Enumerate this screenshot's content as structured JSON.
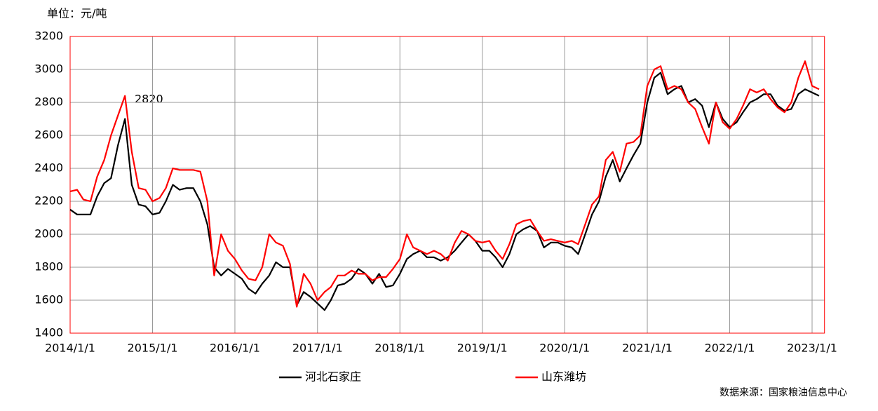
{
  "chart_data": {
    "type": "line",
    "y_label": "单位：元/吨",
    "annotation": "2820",
    "source": "数据来源：国家粮油信息中心",
    "x": [
      "2014/1/1",
      "2014/2/1",
      "2014/3/1",
      "2014/4/1",
      "2014/5/1",
      "2014/6/1",
      "2014/7/1",
      "2014/8/1",
      "2014/9/1",
      "2014/10/1",
      "2014/11/1",
      "2014/12/1",
      "2015/1/1",
      "2015/2/1",
      "2015/3/1",
      "2015/4/1",
      "2015/5/1",
      "2015/6/1",
      "2015/7/1",
      "2015/8/1",
      "2015/9/1",
      "2015/10/1",
      "2015/11/1",
      "2015/12/1",
      "2016/1/1",
      "2016/2/1",
      "2016/3/1",
      "2016/4/1",
      "2016/5/1",
      "2016/6/1",
      "2016/7/1",
      "2016/8/1",
      "2016/9/1",
      "2016/10/1",
      "2016/11/1",
      "2016/12/1",
      "2017/1/1",
      "2017/2/1",
      "2017/3/1",
      "2017/4/1",
      "2017/5/1",
      "2017/6/1",
      "2017/7/1",
      "2017/8/1",
      "2017/9/1",
      "2017/10/1",
      "2017/11/1",
      "2017/12/1",
      "2018/1/1",
      "2018/2/1",
      "2018/3/1",
      "2018/4/1",
      "2018/5/1",
      "2018/6/1",
      "2018/7/1",
      "2018/8/1",
      "2018/9/1",
      "2018/10/1",
      "2018/11/1",
      "2018/12/1",
      "2019/1/1",
      "2019/2/1",
      "2019/3/1",
      "2019/4/1",
      "2019/5/1",
      "2019/6/1",
      "2019/7/1",
      "2019/8/1",
      "2019/9/1",
      "2019/10/1",
      "2019/11/1",
      "2019/12/1",
      "2020/1/1",
      "2020/2/1",
      "2020/3/1",
      "2020/4/1",
      "2020/5/1",
      "2020/6/1",
      "2020/7/1",
      "2020/8/1",
      "2020/9/1",
      "2020/10/1",
      "2020/11/1",
      "2020/12/1",
      "2021/1/1",
      "2021/2/1",
      "2021/3/1",
      "2021/4/1",
      "2021/5/1",
      "2021/6/1",
      "2021/7/1",
      "2021/8/1",
      "2021/9/1",
      "2021/10/1",
      "2021/11/1",
      "2021/12/1",
      "2022/1/1",
      "2022/2/1",
      "2022/3/1",
      "2022/4/1",
      "2022/5/1",
      "2022/6/1",
      "2022/7/1",
      "2022/8/1",
      "2022/9/1",
      "2022/10/1",
      "2022/11/1",
      "2022/12/1",
      "2023/1/1",
      "2023/2/1"
    ],
    "series": [
      {
        "name": "河北石家庄",
        "color": "#000000",
        "values": [
          2150,
          2120,
          2120,
          2120,
          2230,
          2310,
          2340,
          2540,
          2700,
          2300,
          2180,
          2170,
          2120,
          2130,
          2200,
          2300,
          2270,
          2280,
          2280,
          2200,
          2060,
          1800,
          1750,
          1790,
          1760,
          1730,
          1670,
          1640,
          1700,
          1750,
          1830,
          1800,
          1800,
          1570,
          1650,
          1620,
          1580,
          1540,
          1600,
          1690,
          1700,
          1730,
          1790,
          1760,
          1700,
          1760,
          1680,
          1690,
          1760,
          1850,
          1880,
          1900,
          1860,
          1860,
          1840,
          1860,
          1900,
          1950,
          2000,
          1960,
          1900,
          1900,
          1860,
          1800,
          1880,
          2000,
          2030,
          2050,
          2020,
          1920,
          1950,
          1950,
          1930,
          1920,
          1880,
          2000,
          2120,
          2200,
          2350,
          2450,
          2320,
          2400,
          2480,
          2550,
          2800,
          2950,
          2980,
          2850,
          2880,
          2900,
          2800,
          2820,
          2780,
          2650,
          2800,
          2700,
          2650,
          2680,
          2740,
          2800,
          2820,
          2850,
          2850,
          2780,
          2750,
          2760,
          2850,
          2880,
          2860,
          2840
        ]
      },
      {
        "name": "山东潍坊",
        "color": "#ff0000",
        "values": [
          2260,
          2270,
          2210,
          2200,
          2350,
          2450,
          2600,
          2720,
          2840,
          2500,
          2280,
          2270,
          2200,
          2220,
          2280,
          2400,
          2390,
          2390,
          2390,
          2380,
          2200,
          1750,
          2000,
          1900,
          1850,
          1780,
          1730,
          1720,
          1800,
          2000,
          1950,
          1930,
          1820,
          1560,
          1760,
          1700,
          1600,
          1650,
          1680,
          1750,
          1750,
          1780,
          1760,
          1760,
          1720,
          1740,
          1740,
          1790,
          1850,
          2000,
          1920,
          1900,
          1880,
          1900,
          1880,
          1840,
          1950,
          2020,
          2000,
          1960,
          1950,
          1960,
          1900,
          1850,
          1940,
          2060,
          2080,
          2090,
          2020,
          1960,
          1970,
          1960,
          1950,
          1960,
          1940,
          2060,
          2180,
          2230,
          2450,
          2500,
          2380,
          2550,
          2560,
          2600,
          2900,
          3000,
          3020,
          2880,
          2900,
          2880,
          2800,
          2760,
          2650,
          2550,
          2800,
          2680,
          2640,
          2700,
          2780,
          2880,
          2860,
          2880,
          2820,
          2770,
          2740,
          2800,
          2950,
          3050,
          2900,
          2880
        ]
      }
    ],
    "xlim": [
      "2014/1/1",
      "2023/2/25"
    ],
    "xticks": [
      "2014/1/1",
      "2015/1/1",
      "2016/1/1",
      "2017/1/1",
      "2018/1/1",
      "2019/1/1",
      "2020/1/1",
      "2021/1/1",
      "2022/1/1",
      "2023/1/1"
    ],
    "ylim": [
      1400,
      3200
    ],
    "yticks": [
      1400,
      1600,
      1800,
      2000,
      2200,
      2400,
      2600,
      2800,
      3000,
      3200
    ],
    "grid": true,
    "legend": "bottom"
  }
}
